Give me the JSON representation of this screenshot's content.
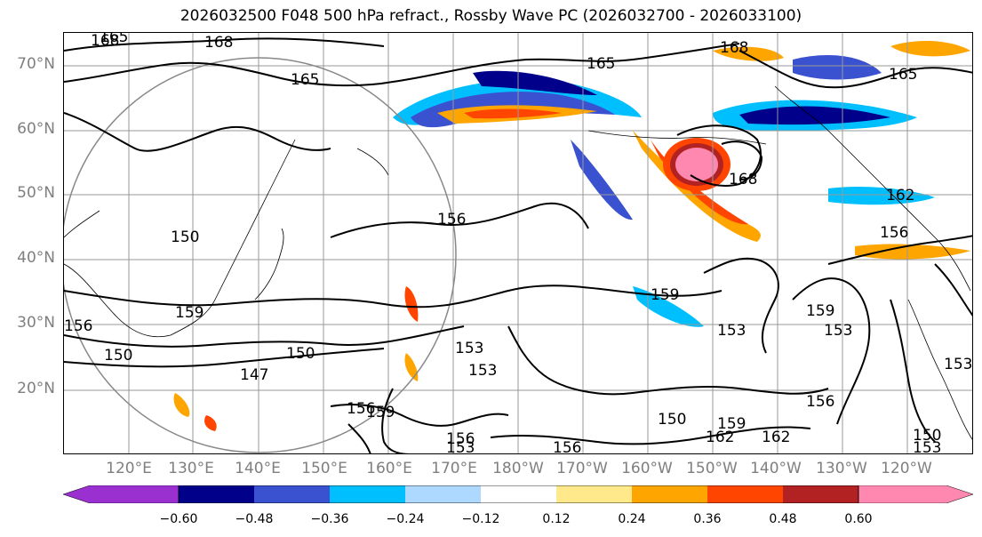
{
  "title": "2026032500 F048 500 hPa refract., Rossby Wave PC (2026032700 - 2026033100)",
  "latitude_labels": [
    "70°N",
    "60°N",
    "50°N",
    "40°N",
    "30°N",
    "20°N"
  ],
  "longitude_labels": [
    "120°E",
    "130°E",
    "140°E",
    "150°E",
    "160°E",
    "170°E",
    "180°W",
    "170°W",
    "160°W",
    "150°W",
    "140°W",
    "130°W",
    "120°W"
  ],
  "contour_labels": [
    "168",
    "168",
    "165",
    "165",
    "165",
    "168",
    "168",
    "162",
    "156",
    "156",
    "159",
    "159",
    "153",
    "153",
    "153",
    "150",
    "150",
    "150",
    "147",
    "156",
    "153",
    "159",
    "156",
    "159",
    "162",
    "150",
    "153",
    "150",
    "156",
    "153",
    "156",
    "153",
    "156",
    "162",
    "165",
    "159"
  ],
  "colorbar": {
    "tick_labels": [
      "−0.60",
      "−0.48",
      "−0.36",
      "−0.24",
      "−0.12",
      "0.12",
      "0.24",
      "0.36",
      "0.48",
      "0.60"
    ],
    "colors": [
      "#9b30d0",
      "#00008b",
      "#3a52d0",
      "#00bfff",
      "#add8ff",
      "#ffffff",
      "#ffe98a",
      "#ffa500",
      "#ff4500",
      "#b22222",
      "#ff88b0",
      "#ff88b0"
    ],
    "extend": "both"
  }
}
